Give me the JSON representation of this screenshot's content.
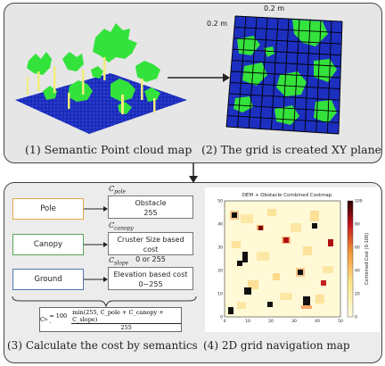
{
  "panel1": {
    "caption": "(1) Semantic Point cloud map"
  },
  "panel2": {
    "caption": "(2) The grid is created XY plane",
    "dim_top": "0.2 m",
    "dim_left": "0.2 m"
  },
  "panel3": {
    "caption": "(3) Calculate the cost by semantics",
    "rows": [
      {
        "class_label": "Pole",
        "cost_symbol": "C",
        "cost_sub": "pole",
        "output_line1": "Obstacle",
        "output_line2": "255",
        "color": "#e8a84c"
      },
      {
        "class_label": "Canopy",
        "cost_symbol": "C",
        "cost_sub": "canopy",
        "output_line1": "Cruster Size based cost",
        "output_line2": "0 or 255",
        "color": "#5aa35a"
      },
      {
        "class_label": "Ground",
        "cost_symbol": "C",
        "cost_sub": "slope",
        "output_line1": "Elevation based cost",
        "output_line2": "0~255",
        "color": "#4f74b8"
      }
    ],
    "formula": {
      "lhs": "C",
      "lhs_sub": "n",
      "eq": "= 100 ·",
      "numerator": "min(255, C_pole + C_canopy + C_slope)",
      "denominator": "255"
    }
  },
  "panel4": {
    "caption": "(4) 2D grid navigation map",
    "chart_title": "DEM + Obstacle Combined Costmap",
    "colorbar_label": "Combined Cost (0-100)",
    "x_ticks": [
      "0",
      "10",
      "20",
      "30",
      "40",
      "50"
    ],
    "y_ticks": [
      "0",
      "10",
      "20",
      "30",
      "40",
      "50"
    ],
    "colorbar_ticks": [
      "0",
      "20",
      "40",
      "60",
      "80",
      "100"
    ]
  },
  "colors": {
    "ground": "#1c2fbf",
    "vegetation": "#34e23c",
    "pole": "#f1ec7a",
    "arrow": "#222222"
  }
}
